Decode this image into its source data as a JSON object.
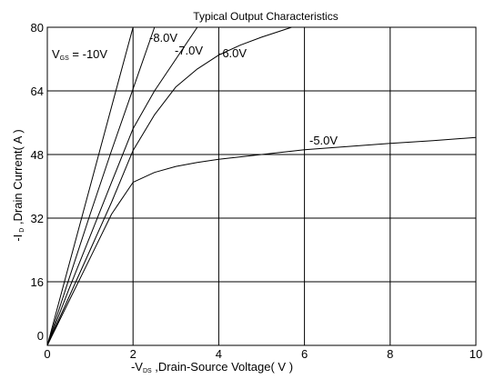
{
  "chart_data": {
    "type": "line",
    "title": "Typical Output Characteristics",
    "xlabel": {
      "prefix": "-V",
      "subscript": "DS",
      "suffix": " ,Drain-Source Voltage( V )"
    },
    "ylabel": {
      "prefix": "-I",
      "subscript": " D",
      "suffix": " ,Drain Current( A )"
    },
    "xlim": [
      0,
      10
    ],
    "ylim": [
      0,
      80
    ],
    "xticks": [
      0,
      2,
      4,
      6,
      8,
      10
    ],
    "yticks": [
      0,
      16,
      32,
      48,
      64,
      80
    ],
    "grid": true,
    "series": [
      {
        "name": {
          "prefix": "V",
          "subscript": "GS",
          "suffix": " = -10V"
        },
        "x": [
          0,
          0.5,
          1.0,
          1.5,
          2.0
        ],
        "y": [
          0,
          20,
          40,
          60,
          80
        ]
      },
      {
        "name": "-8.0V",
        "x": [
          0,
          0.5,
          1.0,
          1.5,
          2.0,
          2.5
        ],
        "y": [
          0,
          16.5,
          33,
          49,
          64.5,
          80
        ]
      },
      {
        "name": "-7.0V",
        "x": [
          0,
          0.5,
          1.0,
          1.5,
          2.0,
          2.5,
          3.0,
          3.5
        ],
        "y": [
          0,
          14,
          27.5,
          41,
          54.5,
          64,
          72,
          80
        ]
      },
      {
        "name": "-6.0V",
        "x": [
          0,
          0.5,
          1.0,
          1.5,
          2.0,
          2.5,
          3.0,
          3.5,
          4.0,
          4.5,
          5.0,
          5.5,
          5.7
        ],
        "y": [
          0,
          12,
          24,
          36,
          49,
          58,
          65,
          69.5,
          73,
          75.5,
          77.5,
          79.3,
          80
        ]
      },
      {
        "name": "-5.0V",
        "x": [
          0,
          0.5,
          1.0,
          1.5,
          2.0,
          2.5,
          3.0,
          3.5,
          4.0,
          5.0,
          6.0,
          7.0,
          8.0,
          9.0,
          10.0
        ],
        "y": [
          0,
          11,
          22,
          33,
          41,
          43.5,
          45,
          46,
          46.8,
          48,
          49.2,
          50,
          50.8,
          51.5,
          52.3
        ]
      }
    ]
  }
}
